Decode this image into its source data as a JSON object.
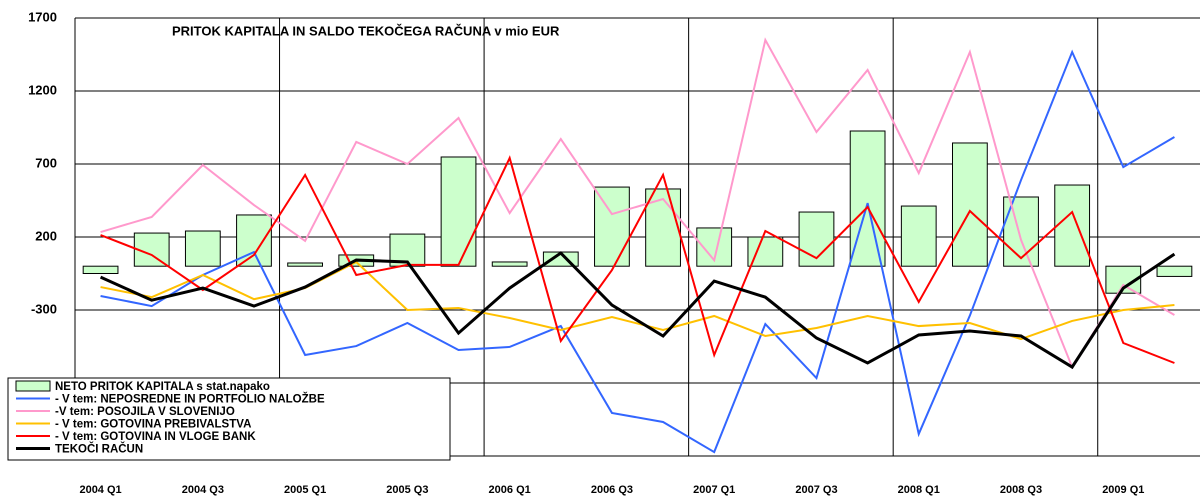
{
  "chart_data": {
    "type": "combo",
    "title": "PRITOK KAPITALA IN SALDO TEKOČEGA RAČUNA v mio EUR",
    "categories": [
      "2004 Q1",
      null,
      "2004 Q3",
      null,
      "2005 Q1",
      null,
      "2005 Q3",
      null,
      "2006 Q1",
      null,
      "2006 Q3",
      null,
      "2007 Q1",
      null,
      "2007 Q3",
      null,
      "2008 Q1",
      null,
      "2008 Q3",
      null,
      "2009 Q1",
      null
    ],
    "ylim": [
      -1300,
      1700
    ],
    "yticks": [
      1700,
      1200,
      700,
      200,
      -300,
      -800,
      -1300
    ],
    "grid": true,
    "series": [
      {
        "name": "NETO PRITOK KAPITALA s stat.napako",
        "type": "bar",
        "color": "#ccffcc",
        "values": [
          -50,
          227,
          241,
          351,
          22,
          77,
          220,
          748,
          29,
          97,
          542,
          529,
          262,
          200,
          371,
          926,
          412,
          844,
          474,
          556,
          -185,
          -70
        ]
      },
      {
        "name": "- V tem: NEPOSREDNE IN PORTFOLIO NALOŽBE",
        "type": "line",
        "color": "#3366ff",
        "values": [
          -204,
          -273,
          -60,
          97,
          -608,
          -547,
          -389,
          -574,
          -553,
          -410,
          -1005,
          -1067,
          -1273,
          -396,
          -766,
          432,
          -1149,
          -338,
          590,
          1467,
          679,
          885
        ]
      },
      {
        "name": "-V tem: POSOJILA V SLOVENIJO",
        "type": "line",
        "color": "#ff99cc",
        "values": [
          234,
          337,
          693,
          419,
          173,
          851,
          700,
          1015,
          364,
          871,
          357,
          460,
          41,
          1549,
          919,
          1344,
          638,
          1467,
          180,
          -691,
          -129,
          -334
        ]
      },
      {
        "name": "- V tem: GOTOVINA PREBIVALSTVA",
        "type": "line",
        "color": "#ffc000",
        "values": [
          -143,
          -212,
          -60,
          -226,
          -150,
          29,
          -300,
          -286,
          -355,
          -437,
          -348,
          -437,
          -341,
          -478,
          -423,
          -341,
          -410,
          -389,
          -499,
          -375,
          -300,
          -266
        ]
      },
      {
        "name": "- V tem: GOTOVINA IN VLOGE BANK",
        "type": "line",
        "color": "#ff0000",
        "values": [
          213,
          77,
          -163,
          77,
          625,
          -60,
          9,
          9,
          741,
          -512,
          -27,
          625,
          -608,
          241,
          55,
          405,
          -245,
          378,
          55,
          371,
          -526,
          -663
        ]
      },
      {
        "name": "TEKOČI RAČUN",
        "type": "line",
        "color": "#000000",
        "values": [
          -75,
          -233,
          -150,
          -273,
          -143,
          42,
          29,
          -458,
          -150,
          90,
          -266,
          -478,
          -102,
          -212,
          -492,
          -663,
          -471,
          -444,
          -478,
          -691,
          -150,
          83
        ]
      }
    ]
  }
}
